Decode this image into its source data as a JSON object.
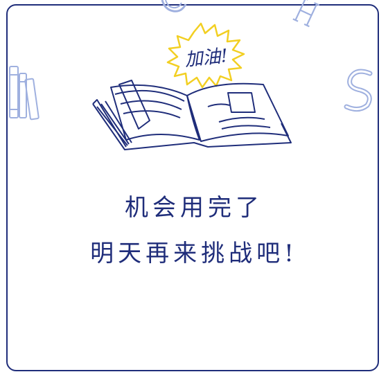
{
  "popup": {
    "badge_text": "加油!",
    "line1": "机会用完了",
    "line2": "明天再来挑战吧!"
  },
  "icons": {
    "book": "open-book-icon",
    "badge": "starburst-badge-icon",
    "stack": "book-stack-icon",
    "letter_s": "letter-s-icon",
    "letter_h": "letter-h-icon",
    "letter_c": "letter-c-icon"
  },
  "colors": {
    "ink": "#1f2d7a",
    "badge_stroke": "#f2cf22",
    "background": "#ffffff"
  }
}
